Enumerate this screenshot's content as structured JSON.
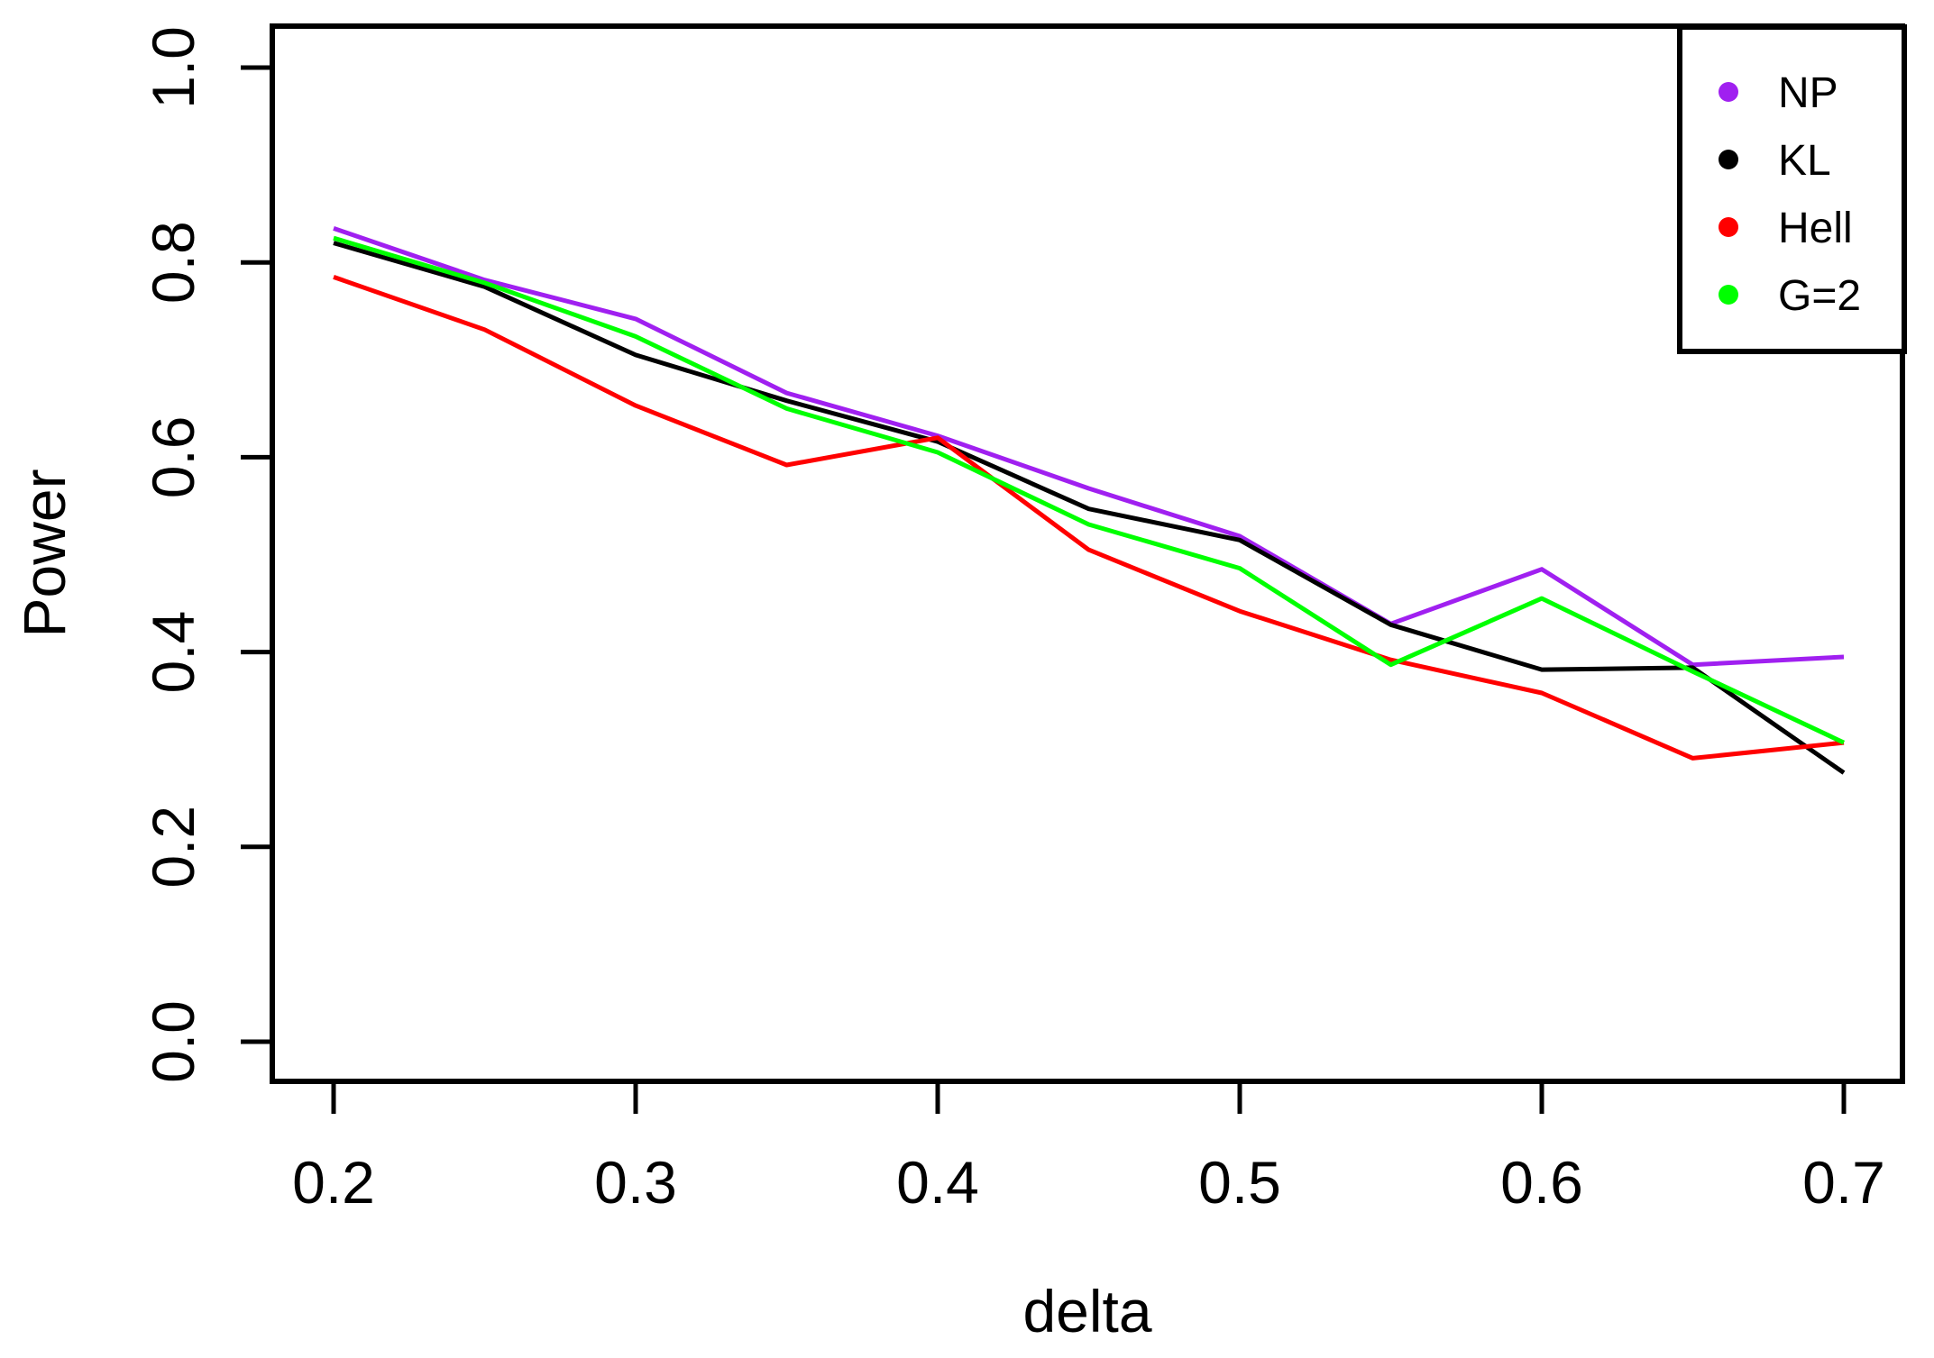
{
  "chart_data": {
    "type": "line",
    "title": "",
    "xlabel": "delta",
    "ylabel": "Power",
    "xlim": [
      0.2,
      0.7
    ],
    "ylim": [
      0.0,
      1.0
    ],
    "grid": false,
    "background_color": "#FFFFFF",
    "axis_color": "#000000",
    "x": [
      0.2,
      0.25,
      0.3,
      0.35,
      0.4,
      0.45,
      0.5,
      0.55,
      0.6,
      0.65,
      0.7
    ],
    "x_ticks": [
      0.2,
      0.3,
      0.4,
      0.5,
      0.6,
      0.7
    ],
    "x_tick_labels": [
      "0.2",
      "0.3",
      "0.4",
      "0.5",
      "0.6",
      "0.7"
    ],
    "y_ticks": [
      0.0,
      0.2,
      0.4,
      0.6,
      0.8,
      1.0
    ],
    "y_tick_labels": [
      "0.0",
      "0.2",
      "0.4",
      "0.6",
      "0.8",
      "1.0"
    ],
    "series": [
      {
        "name": "NP",
        "color": "#A020F0",
        "values": [
          0.835,
          0.782,
          0.742,
          0.666,
          0.622,
          0.568,
          0.519,
          0.429,
          0.485,
          0.387,
          0.395
        ]
      },
      {
        "name": "KL",
        "color": "#000000",
        "values": [
          0.82,
          0.775,
          0.705,
          0.658,
          0.616,
          0.547,
          0.515,
          0.428,
          0.382,
          0.384,
          0.276
        ]
      },
      {
        "name": "Hell",
        "color": "#FF0000",
        "values": [
          0.785,
          0.731,
          0.653,
          0.592,
          0.62,
          0.505,
          0.442,
          0.392,
          0.358,
          0.291,
          0.307
        ]
      },
      {
        "name": "G=2",
        "color": "#00FF00",
        "values": [
          0.825,
          0.779,
          0.724,
          0.65,
          0.605,
          0.531,
          0.486,
          0.387,
          0.455,
          0.38,
          0.307
        ]
      }
    ],
    "legend": {
      "position": "top-right",
      "entries": [
        {
          "label": "NP",
          "color": "#A020F0"
        },
        {
          "label": "KL",
          "color": "#000000"
        },
        {
          "label": "Hell",
          "color": "#FF0000"
        },
        {
          "label": "G=2",
          "color": "#00FF00"
        }
      ]
    }
  }
}
